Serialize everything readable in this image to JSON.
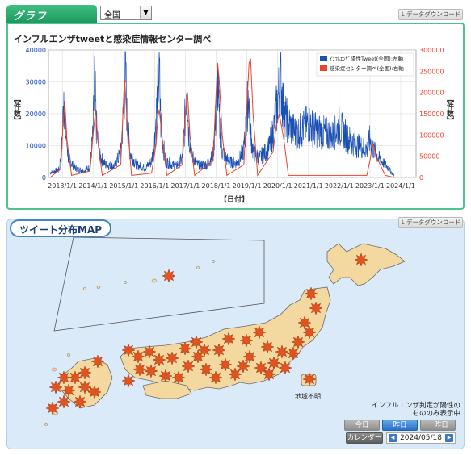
{
  "graph_section": {
    "tab_label": "グラフ",
    "region_select_value": "全国",
    "download_label": "データダウンロード",
    "title": "インフルエンザtweetと感染症情報センター調べ"
  },
  "chart_data": {
    "type": "line",
    "title": "インフルエンザtweetと感染症情報センター調べ",
    "xlabel": "【日付】",
    "ylabel_left": "【件数】",
    "ylabel_right": "【件数】",
    "ylim_left": [
      0,
      40000
    ],
    "ylim_right": [
      0,
      300000
    ],
    "y_ticks_left": [
      "0",
      "10000",
      "20000",
      "30000",
      "40000"
    ],
    "y_ticks_right": [
      "0",
      "50000",
      "100000",
      "150000",
      "200000",
      "250000",
      "300000"
    ],
    "x_ticks": [
      "2013/1/1",
      "2014/1/1",
      "2015/1/1",
      "2016/1/1",
      "2017/1/1",
      "2018/1/1",
      "2019/1/1",
      "2020/1/1",
      "2021/1/1",
      "2022/1/1",
      "2023/1/1",
      "2024/1/1"
    ],
    "grid": true,
    "legend_placement": "top-right",
    "series": [
      {
        "name": "ｲﾝﾌﾙｴﾝｻﾞ陽性Tweet(全国):左軸",
        "color": "#1a4fb4",
        "axis": "left",
        "x": [
          2012.6,
          2012.9,
          2013.0,
          2013.05,
          2013.1,
          2013.2,
          2013.4,
          2013.7,
          2013.9,
          2014.0,
          2014.05,
          2014.1,
          2014.2,
          2014.4,
          2014.7,
          2014.9,
          2015.0,
          2015.05,
          2015.1,
          2015.2,
          2015.4,
          2015.7,
          2015.9,
          2016.0,
          2016.1,
          2016.15,
          2016.2,
          2016.35,
          2016.7,
          2016.9,
          2017.0,
          2017.05,
          2017.1,
          2017.2,
          2017.4,
          2017.7,
          2017.9,
          2018.0,
          2018.05,
          2018.1,
          2018.2,
          2018.4,
          2018.7,
          2018.9,
          2019.0,
          2019.05,
          2019.1,
          2019.2,
          2019.4,
          2019.7,
          2019.85,
          2020.0,
          2020.1,
          2020.2,
          2020.4,
          2020.6,
          2020.8,
          2021.0,
          2021.2,
          2021.5,
          2021.8,
          2022.0,
          2022.3,
          2022.6,
          2022.9,
          2023.0,
          2023.1,
          2023.3,
          2023.6,
          2023.7,
          2023.8
        ],
        "values": [
          1500,
          2500,
          12000,
          28000,
          15000,
          6000,
          3000,
          2000,
          3500,
          14000,
          31000,
          17000,
          7000,
          4000,
          3500,
          8000,
          22000,
          37000,
          19000,
          8000,
          4000,
          3000,
          5000,
          12000,
          26000,
          35000,
          17000,
          5000,
          3500,
          6000,
          20000,
          34000,
          15000,
          7000,
          4000,
          4000,
          7000,
          20000,
          31000,
          18000,
          8000,
          5000,
          4500,
          9000,
          19000,
          28000,
          16000,
          8000,
          6000,
          9000,
          14000,
          24000,
          31000,
          20000,
          16000,
          14000,
          15000,
          17000,
          15000,
          14000,
          13000,
          16000,
          12000,
          10000,
          9000,
          12000,
          9000,
          6000,
          3000,
          1500,
          500
        ]
      },
      {
        "name": "感染症センター調べ(全国):右軸",
        "color": "#e8452c",
        "axis": "right",
        "x": [
          2012.6,
          2012.95,
          2013.02,
          2013.08,
          2013.15,
          2013.3,
          2013.9,
          2014.0,
          2014.08,
          2014.15,
          2014.3,
          2014.9,
          2015.0,
          2015.03,
          2015.1,
          2015.25,
          2015.9,
          2016.05,
          2016.1,
          2016.15,
          2016.25,
          2016.4,
          2016.9,
          2017.0,
          2017.07,
          2017.15,
          2017.3,
          2017.9,
          2018.0,
          2018.05,
          2018.1,
          2018.2,
          2018.35,
          2018.9,
          2019.0,
          2019.07,
          2019.12,
          2019.2,
          2019.35,
          2019.85,
          2019.95,
          2020.05,
          2020.2,
          2020.35,
          2022.9,
          2023.0,
          2023.1,
          2023.2,
          2023.5,
          2023.8
        ],
        "values": [
          0,
          20000,
          120000,
          180000,
          90000,
          5000,
          15000,
          100000,
          160000,
          90000,
          5000,
          30000,
          200000,
          230000,
          140000,
          5000,
          10000,
          80000,
          140000,
          160000,
          90000,
          5000,
          30000,
          150000,
          200000,
          100000,
          5000,
          40000,
          200000,
          270000,
          230000,
          100000,
          5000,
          30000,
          170000,
          270000,
          280000,
          150000,
          5000,
          60000,
          120000,
          150000,
          90000,
          5000,
          5000,
          40000,
          80000,
          50000,
          5000,
          0
        ]
      }
    ]
  },
  "map_section": {
    "title": "ツイート分布MAP",
    "download_label": "データダウンロード",
    "legend_note_line1": "インフルエンザ判定が陽性の",
    "legend_note_line2": "もののみ表示中",
    "unknown_region_label": "地域不明",
    "btn_today": "今日",
    "btn_yesterday": "昨日",
    "btn_day_before": "一昨日",
    "btn_calendar": "カレンダー",
    "date_value": "2024/05/18",
    "prev_icon": "chevron-left-icon",
    "next_icon": "chevron-right-icon",
    "colors": {
      "land": "#f3d9a0",
      "sea": "#dbeaf8",
      "marker": "#e0541f"
    }
  }
}
